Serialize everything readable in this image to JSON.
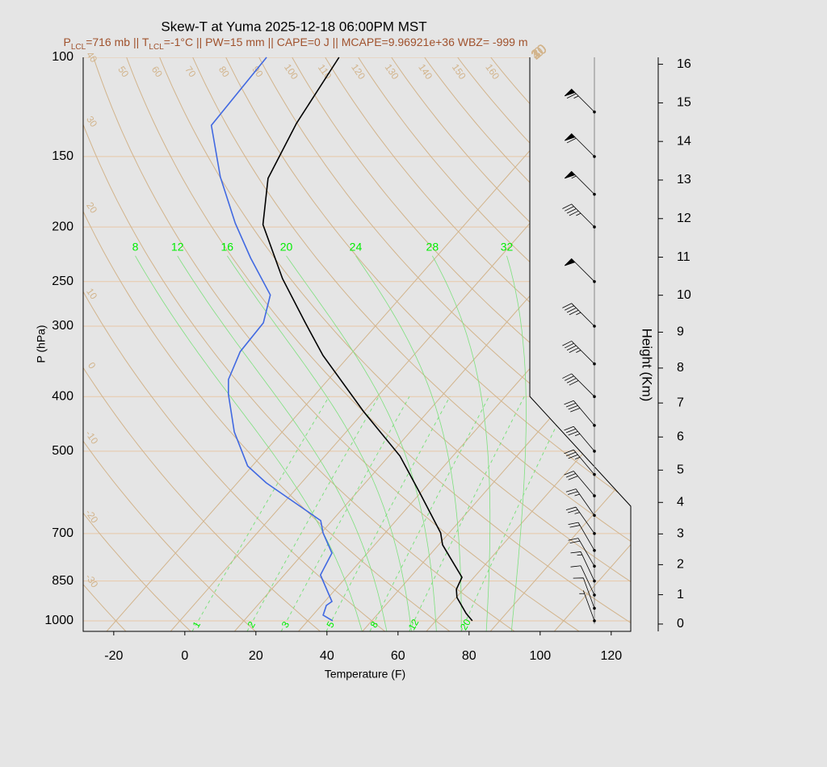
{
  "chart_data": {
    "type": "skewt",
    "title": "Skew-T at Yuma 2025-12-18 06:00PM MST",
    "subtitle_parts": [
      {
        "text": "P"
      },
      {
        "text": "LCL",
        "sub": true
      },
      {
        "text": "=716 mb || T"
      },
      {
        "text": "LCL",
        "sub": true
      },
      {
        "text": "=-1°C || PW=15 mm || CAPE=0 J || MCAPE=9.96921e+36 WBZ= -999 m"
      }
    ],
    "subtitle_color": "#a0522d",
    "xlabel": "Temperature (F)",
    "ylabel": "P (hPa)",
    "y2label": "Height (Km)",
    "xlim": [
      -28.6,
      125.5
    ],
    "xticks": [
      -20,
      0,
      20,
      40,
      60,
      80,
      100,
      120
    ],
    "ylim": [
      1044,
      100
    ],
    "log_y": true,
    "yticks": [
      100,
      150,
      200,
      250,
      300,
      400,
      500,
      700,
      850,
      1000
    ],
    "y2ticks": [
      0,
      1,
      2,
      3,
      4,
      5,
      6,
      7,
      8,
      9,
      10,
      11,
      12,
      13,
      14,
      15,
      16
    ],
    "series": [
      {
        "color": "#000000",
        "pressure": [
          1000,
          970,
          909,
          879,
          837,
          783,
          733,
          698,
          592,
          510,
          425,
          338,
          296,
          247,
          198,
          164,
          131,
          100
        ],
        "values": [
          78.3,
          74.7,
          68.2,
          66.0,
          64.6,
          57.8,
          51.1,
          47.6,
          31.7,
          17.1,
          -4.2,
          -29.5,
          -42.5,
          -59.9,
          -78.8,
          -88.8,
          -94.4,
          -98.8
        ]
      },
      {
        "color": "#4169e1",
        "pressure": [
          1000,
          977,
          939,
          924,
          829,
          758,
          698,
          664,
          569,
          531,
          462,
          396,
          373,
          333,
          296,
          264,
          227,
          197,
          163,
          132,
          100
        ],
        "values": [
          39.0,
          34.9,
          33.4,
          34.0,
          24.2,
          22.0,
          14.5,
          10.8,
          -13.9,
          -23.3,
          -35.5,
          -46.5,
          -50.1,
          -53.7,
          -54.3,
          -59.3,
          -74.0,
          -86.9,
          -102.6,
          -117.9,
          -119.2
        ]
      }
    ],
    "isotherms_c": {
      "color": "#d2b48c",
      "ticks": [
        {
          "value": -30,
          "label": "30"
        },
        {
          "value": -20,
          "label": "20"
        },
        {
          "value": -10,
          "label": "10"
        },
        {
          "value": 0,
          "label": "0"
        },
        {
          "value": 10,
          "label": "10"
        },
        {
          "value": 20,
          "label": "20"
        },
        {
          "value": 30,
          "label": "30"
        },
        {
          "value": 40,
          "label": "40"
        }
      ]
    },
    "dry_adiabats_c": {
      "color": "#d2b48c",
      "top_labels": [
        50,
        60,
        70,
        80,
        90,
        100,
        110,
        120,
        130,
        140,
        150,
        160
      ],
      "left_labels": [
        40,
        30,
        20,
        10,
        0,
        -10,
        -20,
        -30
      ]
    },
    "moist_adiabats_c": {
      "color": "#00ee00",
      "values": [
        8,
        12,
        16,
        20,
        24,
        28,
        32
      ]
    },
    "mixing_ratio_gkg": {
      "color": "#00ee00",
      "values": [
        1,
        2,
        3,
        5,
        8,
        12,
        20
      ]
    },
    "wind": {
      "pressure": [
        1000,
        950,
        900,
        850,
        800,
        750,
        700,
        650,
        600,
        550,
        500,
        450,
        400,
        350,
        300,
        250,
        200,
        175,
        150,
        125
      ],
      "speed": [
        5,
        10,
        10,
        15,
        20,
        20,
        25,
        25,
        30,
        35,
        35,
        40,
        40,
        45,
        45,
        50,
        45,
        55,
        60,
        65
      ],
      "direction": [
        340,
        340,
        335,
        335,
        330,
        330,
        325,
        325,
        320,
        320,
        320,
        320,
        315,
        315,
        315,
        315,
        315,
        315,
        315,
        315
      ]
    }
  }
}
